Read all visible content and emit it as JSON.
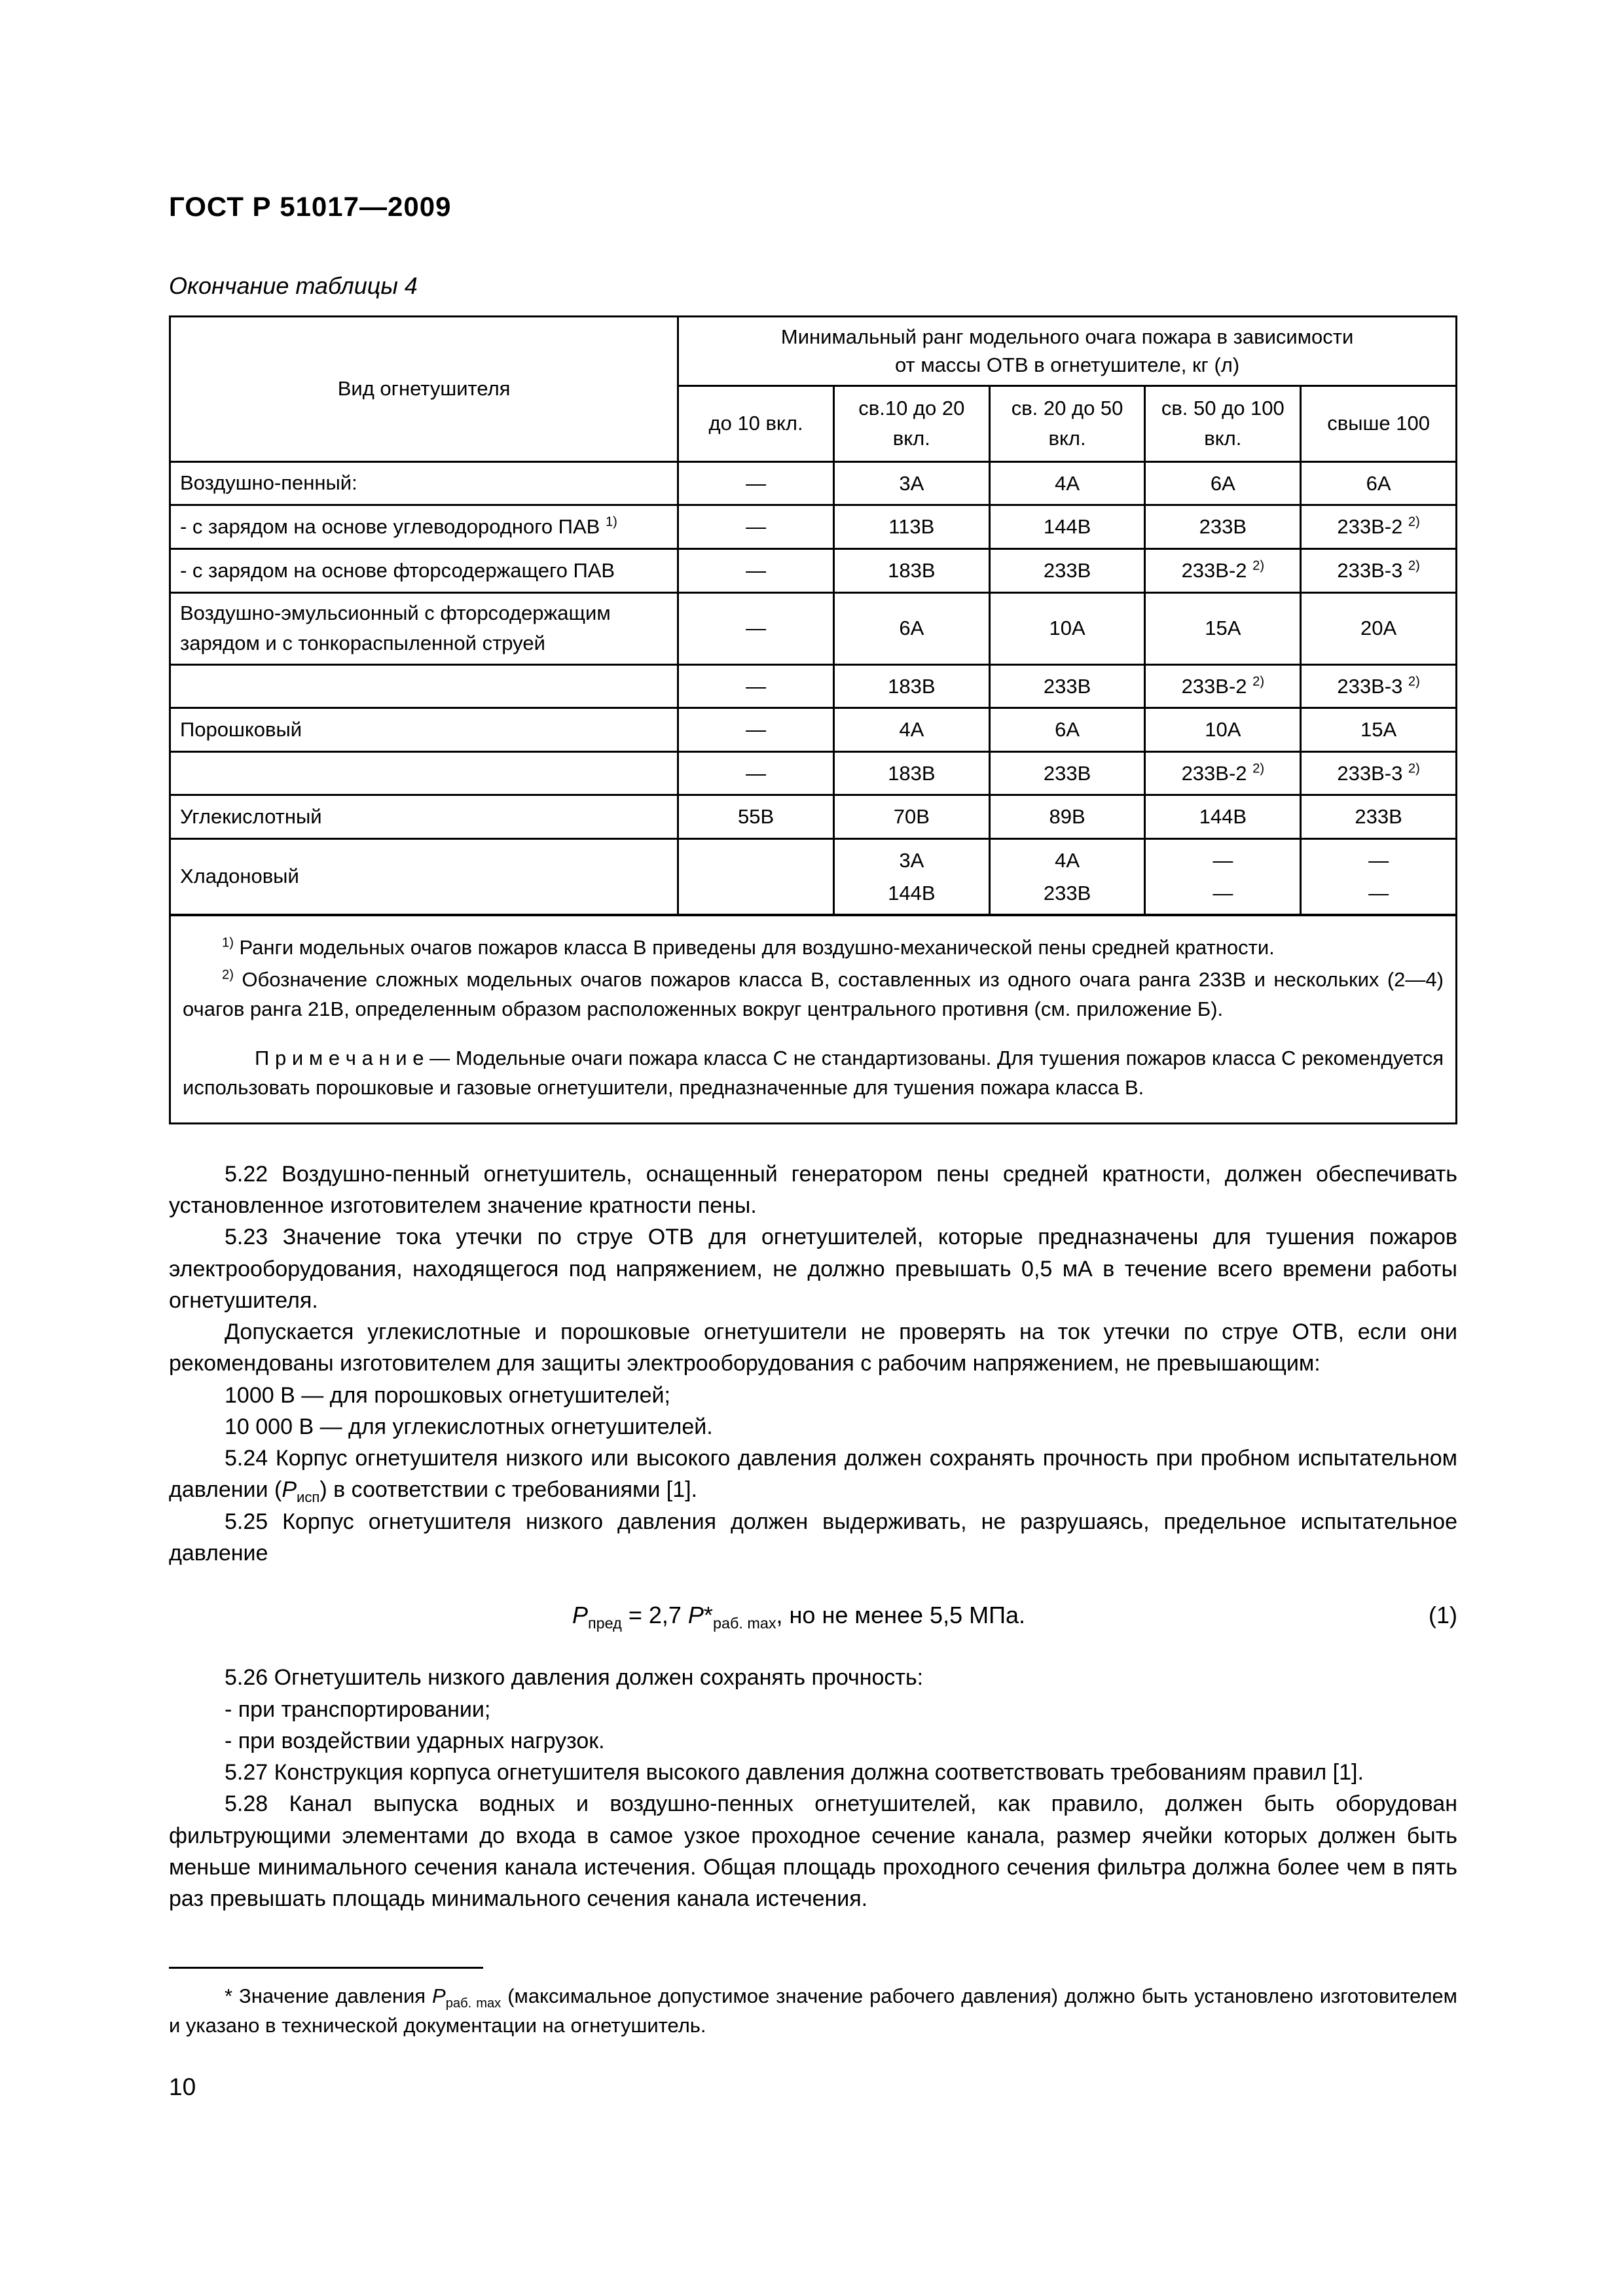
{
  "page": {
    "standard": "ГОСТ Р 51017—2009",
    "table_caption": "Окончание таблицы 4",
    "page_number": "10"
  },
  "table": {
    "col1_header": "Вид огнетушителя",
    "span_header": "Минимальный ранг модельного очага пожара в зависимости\nот массы ОТВ в огнетушителе, кг (л)",
    "columns": [
      "до 10 вкл.",
      "св.10 до 20\nвкл.",
      "св. 20 до 50\nвкл.",
      "св. 50 до 100\nвкл.",
      "свыше 100"
    ],
    "rows": [
      {
        "label": "Воздушно-пенный:",
        "values": [
          "—",
          "3А",
          "4А",
          "6А",
          "6А"
        ]
      },
      {
        "label": "- с зарядом на основе углеводородного ПАВ ^{1)}",
        "values": [
          "—",
          "113В",
          "144В",
          "233В",
          "233В-2 ^{2)}"
        ]
      },
      {
        "label": "- с зарядом на основе фторсодержащего ПАВ",
        "values": [
          "—",
          "183В",
          "233В",
          "233В-2 ^{2)}",
          "233В-3 ^{2)}"
        ]
      },
      {
        "label": "Воздушно-эмульсионный с фторсодержащим\nзарядом и с тонкораспыленной струей",
        "values": [
          "—",
          "6А",
          "10А",
          "15А",
          "20А"
        ]
      },
      {
        "label": "",
        "values": [
          "—",
          "183В",
          "233В",
          "233В-2 ^{2)}",
          "233В-3 ^{2)}"
        ]
      },
      {
        "label": "Порошковый",
        "values": [
          "—",
          "4А",
          "6А",
          "10А",
          "15А"
        ]
      },
      {
        "label": "",
        "values": [
          "—",
          "183В",
          "233В",
          "233В-2 ^{2)}",
          "233В-3 ^{2)}"
        ]
      },
      {
        "label": "Углекислотный",
        "values": [
          "55В",
          "70В",
          "89В",
          "144В",
          "233В"
        ]
      },
      {
        "label": "Хладоновый",
        "values": [
          "",
          "3А\n144В",
          "4А\n233В",
          "—\n—",
          "—\n—"
        ]
      }
    ],
    "footnotes": [
      "^{1)} Ранги модельных очагов пожаров класса В приведены для воздушно-механической пены средней кратности.",
      "^{2)} Обозначение сложных модельных очагов пожаров класса В, составленных из одного очага ранга 233В и нескольких (2—4) очагов ранга 21В, определенным образом расположенных вокруг центрального противня (см. приложение Б)."
    ],
    "note": "П р и м е ч а н и е — Модельные очаги пожара класса С не стандартизованы. Для тушения пожаров класса С рекомендуется использовать порошковые и газовые огнетушители, предназначенные для тушения пожара класса В."
  },
  "body": {
    "paragraphs_before": [
      "5.22 Воздушно-пенный огнетушитель, оснащенный генератором пены средней кратности, должен обеспечивать установленное изготовителем значение кратности пены.",
      "5.23 Значение тока утечки по струе ОТВ для огнетушителей, которые предназначены для тушения пожаров электрооборудования, находящегося под напряжением, не должно превышать 0,5 мА в течение всего времени работы огнетушителя.",
      "Допускается углекислотные и порошковые огнетушители не проверять на ток утечки по струе ОТВ, если они рекомендованы изготовителем для защиты электрооборудования с рабочим напряжением, не превышающим:",
      "1000 В — для порошковых огнетушителей;",
      "10 000 В — для углекислотных огнетушителей.",
      "5.24 Корпус огнетушителя низкого или высокого давления должен сохранять прочность при пробном испытательном давлении (~{Р}_{исп}) в соответствии с требованиями [1].",
      "5.25 Корпус огнетушителя низкого давления должен выдерживать, не разрушаясь, предельное испытательное давление"
    ],
    "formula": {
      "text": "~{Р}_{пред} = 2,7 ~{Р}*_{раб. max}, но не менее 5,5 МПа.",
      "number": "(1)"
    },
    "paragraphs_after": [
      "5.26 Огнетушитель низкого давления должен сохранять прочность:",
      "- при транспортировании;",
      "- при воздействии ударных нагрузок.",
      "5.27 Конструкция корпуса огнетушителя высокого давления должна соответствовать требованиям правил [1].",
      "5.28 Канал выпуска водных и воздушно-пенных огнетушителей, как правило, должен быть оборудован фильтрующими элементами до входа в самое узкое проходное сечение канала, размер ячейки которых должен быть меньше минимального сечения канала истечения. Общая площадь проходного сечения фильтра должна более чем в пять раз превышать площадь минимального сечения канала истечения."
    ]
  },
  "footer": {
    "footnote": "* Значение давления ~{Р}_{раб. max} (максимальное допустимое значение рабочего давления) должно быть установлено изготовителем и указано в технической документации на огнетушитель."
  }
}
